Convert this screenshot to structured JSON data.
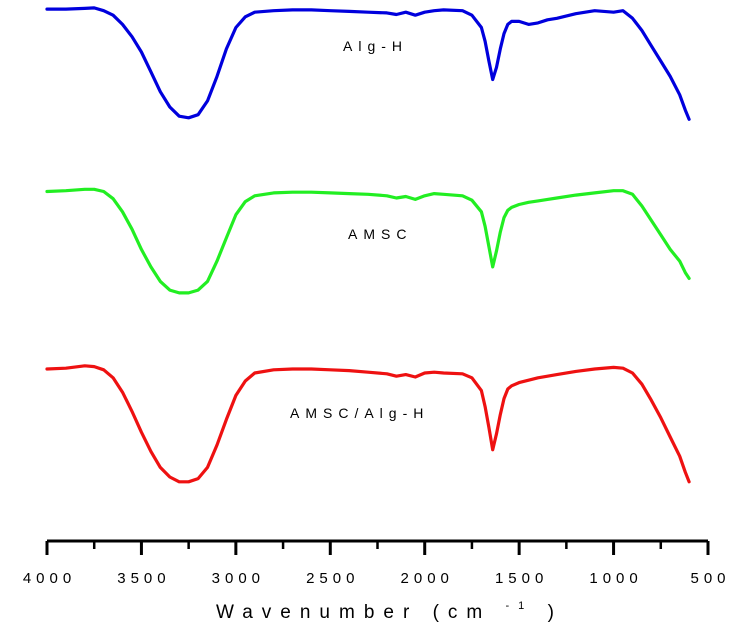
{
  "chart_data": {
    "type": "line",
    "title": "",
    "xlabel": "Wavenumber (cm",
    "xlabel_sup": "-1",
    "xlabel_close": ")",
    "ylabel": "",
    "xlim": [
      4000,
      500
    ],
    "x_reversed": true,
    "y_axis_shown": false,
    "grid": false,
    "x_ticks": [
      4000,
      3500,
      3000,
      2500,
      2000,
      1500,
      1000,
      500
    ],
    "x_tick_labels": [
      "4000",
      "3500",
      "3000",
      "2500",
      "2000",
      "1500",
      "1000",
      "500"
    ],
    "series": [
      {
        "name": "Alg-H",
        "color": "#0000dd",
        "x": [
          4000,
          3900,
          3800,
          3750,
          3700,
          3650,
          3600,
          3550,
          3500,
          3450,
          3400,
          3350,
          3300,
          3250,
          3200,
          3150,
          3100,
          3050,
          3000,
          2950,
          2900,
          2800,
          2700,
          2600,
          2500,
          2400,
          2300,
          2200,
          2150,
          2100,
          2050,
          2000,
          1950,
          1900,
          1800,
          1750,
          1700,
          1680,
          1660,
          1640,
          1620,
          1600,
          1580,
          1560,
          1540,
          1500,
          1450,
          1400,
          1350,
          1300,
          1200,
          1100,
          1000,
          950,
          900,
          850,
          800,
          750,
          700,
          650,
          620,
          600
        ],
        "y": [
          96,
          96,
          96.5,
          96.8,
          95,
          92,
          86,
          78,
          68,
          55,
          42,
          32,
          26,
          25,
          27,
          36,
          52,
          70,
          84,
          91,
          94,
          95,
          95.5,
          95.5,
          95,
          94.5,
          94,
          93.5,
          92.5,
          94,
          92,
          94,
          95,
          95.5,
          95,
          92,
          84,
          75,
          62,
          50,
          58,
          70,
          80,
          86,
          88,
          88,
          86,
          87,
          89,
          90,
          93,
          95,
          94,
          95,
          90,
          82,
          72,
          62,
          52,
          40,
          30,
          24
        ]
      },
      {
        "name": "AMSC",
        "color": "#22ee22",
        "x": [
          4000,
          3900,
          3800,
          3750,
          3700,
          3650,
          3600,
          3550,
          3500,
          3450,
          3400,
          3350,
          3300,
          3250,
          3200,
          3150,
          3100,
          3050,
          3000,
          2950,
          2900,
          2800,
          2700,
          2600,
          2500,
          2400,
          2300,
          2200,
          2150,
          2100,
          2050,
          2000,
          1950,
          1900,
          1800,
          1750,
          1700,
          1680,
          1660,
          1640,
          1620,
          1600,
          1580,
          1560,
          1540,
          1500,
          1450,
          1400,
          1350,
          1300,
          1200,
          1100,
          1000,
          950,
          900,
          850,
          800,
          750,
          700,
          650,
          620,
          600
        ],
        "y": [
          96,
          96.5,
          97.5,
          97.5,
          96,
          91,
          82,
          70,
          56,
          44,
          34,
          28,
          26,
          26,
          28,
          34,
          48,
          64,
          80,
          89,
          93,
          95,
          95.5,
          95.5,
          95,
          94.5,
          94,
          93,
          91.5,
          92.5,
          90.5,
          93,
          94.5,
          94,
          93,
          90,
          82,
          72,
          58,
          44,
          55,
          68,
          78,
          83,
          85,
          87,
          88.5,
          89.5,
          90.5,
          91.5,
          93.5,
          95,
          96.5,
          96.5,
          94,
          86,
          76,
          66,
          56,
          48,
          40,
          36
        ]
      },
      {
        "name": "AMSC/Alg-H",
        "color": "#ee1111",
        "x": [
          4000,
          3900,
          3800,
          3750,
          3700,
          3650,
          3600,
          3550,
          3500,
          3450,
          3400,
          3350,
          3300,
          3250,
          3200,
          3150,
          3100,
          3050,
          3000,
          2950,
          2900,
          2800,
          2700,
          2600,
          2500,
          2400,
          2300,
          2200,
          2150,
          2100,
          2050,
          2000,
          1950,
          1900,
          1800,
          1750,
          1700,
          1680,
          1660,
          1640,
          1620,
          1600,
          1580,
          1560,
          1540,
          1500,
          1450,
          1400,
          1350,
          1300,
          1200,
          1100,
          1000,
          950,
          900,
          850,
          800,
          750,
          700,
          650,
          620,
          600
        ],
        "y": [
          94.5,
          95,
          96.5,
          96,
          94,
          89,
          80,
          68,
          55,
          43,
          33,
          27,
          24,
          24,
          26,
          33,
          47,
          63,
          78,
          87,
          92,
          94,
          94.5,
          94.5,
          94,
          93.5,
          92.5,
          91.5,
          90,
          91,
          89.5,
          92,
          92.5,
          92,
          91.5,
          89,
          81,
          71,
          58,
          44,
          54,
          66,
          76,
          82,
          84,
          86,
          87.5,
          89,
          90,
          91,
          93,
          94.5,
          95.5,
          95,
          92,
          85,
          75,
          64,
          52,
          40,
          30,
          24
        ]
      }
    ]
  }
}
